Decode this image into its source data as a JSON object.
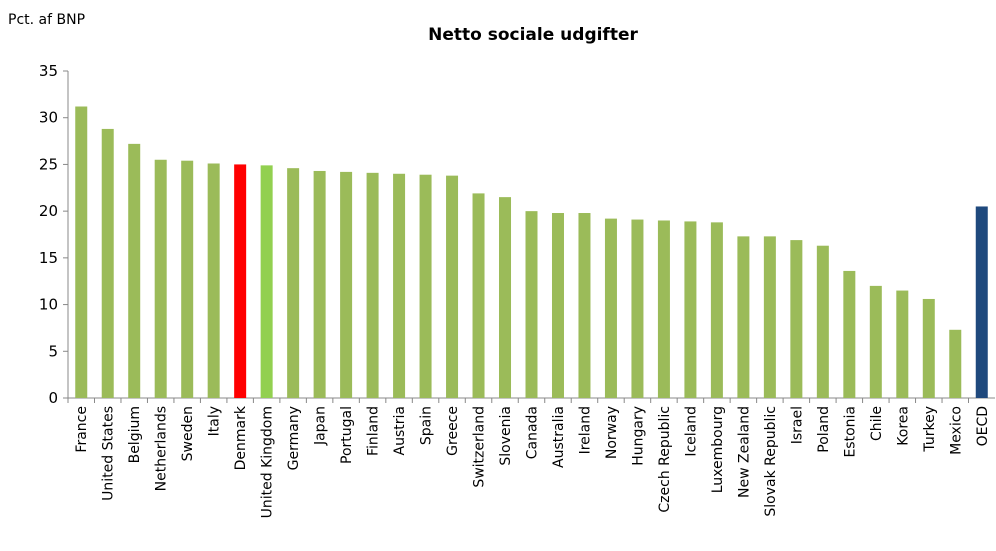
{
  "chart_data": {
    "type": "bar",
    "title": "Netto sociale udgifter",
    "y_label": "Pct. af BNP",
    "categories": [
      "France",
      "United States",
      "Belgium",
      "Netherlands",
      "Sweden",
      "Italy",
      "Denmark",
      "United Kingdom",
      "Germany",
      "Japan",
      "Portugal",
      "Finland",
      "Austria",
      "Spain",
      "Greece",
      "Switzerland",
      "Slovenia",
      "Canada",
      "Australia",
      "Ireland",
      "Norway",
      "Hungary",
      "Czech Republic",
      "Iceland",
      "Luxembourg",
      "New Zealand",
      "Slovak Republic",
      "Israel",
      "Poland",
      "Estonia",
      "Chile",
      "Korea",
      "Turkey",
      "Mexico",
      "OECD"
    ],
    "values": [
      31.2,
      28.8,
      27.2,
      25.5,
      25.4,
      25.1,
      25.0,
      24.9,
      24.6,
      24.3,
      24.2,
      24.1,
      24.0,
      23.9,
      23.8,
      21.9,
      21.5,
      20.0,
      19.8,
      19.8,
      19.2,
      19.1,
      19.0,
      18.9,
      18.8,
      17.3,
      17.3,
      16.9,
      16.3,
      13.6,
      12.0,
      11.5,
      10.6,
      7.3,
      20.5
    ],
    "colors": [
      "#9bbb59",
      "#9bbb59",
      "#9bbb59",
      "#9bbb59",
      "#9bbb59",
      "#9bbb59",
      "#ff0000",
      "#92d050",
      "#9bbb59",
      "#9bbb59",
      "#9bbb59",
      "#9bbb59",
      "#9bbb59",
      "#9bbb59",
      "#9bbb59",
      "#9bbb59",
      "#9bbb59",
      "#9bbb59",
      "#9bbb59",
      "#9bbb59",
      "#9bbb59",
      "#9bbb59",
      "#9bbb59",
      "#9bbb59",
      "#9bbb59",
      "#9bbb59",
      "#9bbb59",
      "#9bbb59",
      "#9bbb59",
      "#9bbb59",
      "#9bbb59",
      "#9bbb59",
      "#9bbb59",
      "#9bbb59",
      "#1f497d"
    ],
    "ylim": [
      0,
      35
    ],
    "yticks": [
      0,
      5,
      10,
      15,
      20,
      25,
      30,
      35
    ],
    "grid": false
  }
}
